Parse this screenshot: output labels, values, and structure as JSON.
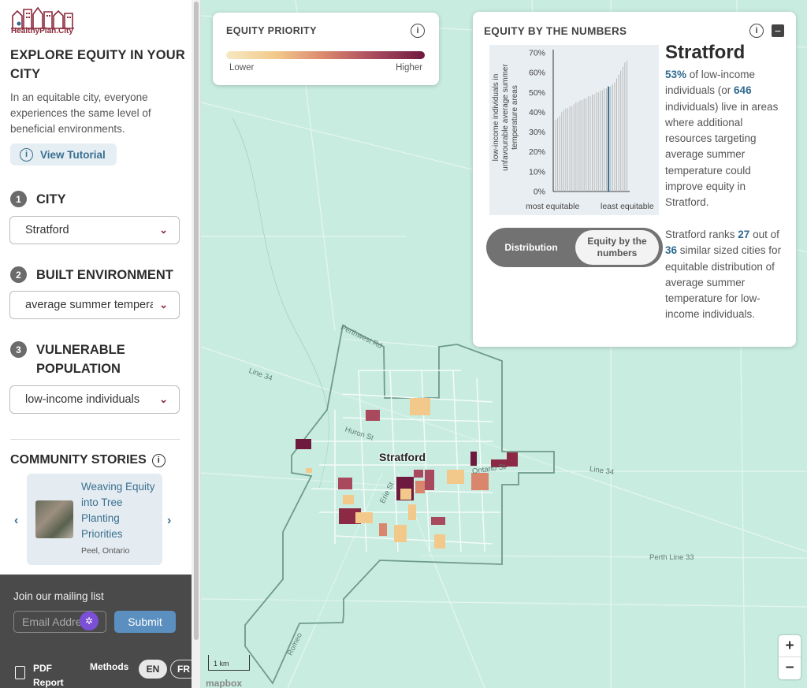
{
  "brand": {
    "logo_text": "HealthyPlan.City"
  },
  "sidebar": {
    "heading": "EXPLORE EQUITY IN YOUR CITY",
    "intro": "In an equitable city, everyone experiences the same level of beneficial environments.",
    "tutorial_label": "View Tutorial",
    "steps": [
      {
        "num": "1",
        "label": "CITY",
        "value": "Stratford"
      },
      {
        "num": "2",
        "label": "BUILT ENVIRONMENT",
        "value": "average summer temperature"
      },
      {
        "num": "3",
        "label": "VULNERABLE POPULATION",
        "value": "low-income individuals"
      }
    ],
    "stories_heading": "COMMUNITY STORIES",
    "story": {
      "title": "Weaving Equity into Tree Planting Priorities",
      "location": "Peel, Ontario"
    }
  },
  "footer": {
    "mailing_heading": "Join our mailing list",
    "email_placeholder": "Email Address",
    "badge": "✲",
    "submit_label": "Submit",
    "pdf_label": "PDF Report",
    "methods_label": "Methods",
    "lang_en": "EN",
    "lang_fr": "FR"
  },
  "map": {
    "city_label": "Stratford",
    "roads": [
      "Perth Line 33",
      "Line 34",
      "Line 34",
      "Huron St",
      "Ontario St",
      "Erie St",
      "Romeo",
      "Perthwest Rd"
    ],
    "scale_label": "1 km",
    "attribution": "mapbox",
    "zoom_in": "+",
    "zoom_out": "−",
    "accent": "#6e1a3f",
    "land_color": "#c9ece0"
  },
  "priority_panel": {
    "title": "EQUITY PRIORITY",
    "low": "Lower",
    "high": "Higher",
    "info": "i"
  },
  "numbers_panel": {
    "title": "EQUITY BY THE NUMBERS",
    "info": "i",
    "minimize": "−",
    "city": "Stratford",
    "pct": "53%",
    "desc_a": " of low-income individuals (or ",
    "count": "646",
    "desc_b": " individuals) live in areas where additional resources targeting average summer temperature could improve equity in Stratford.",
    "toggle_a": "Distribution",
    "toggle_b": "Equity by the numbers",
    "rank_a": "Stratford ranks ",
    "rank": "27",
    "rank_b": " out of ",
    "total": "36",
    "rank_c": " similar sized cities for equitable distribution of average summer temperature for low-income individuals."
  },
  "chart_data": {
    "type": "bar",
    "ylabel": "low-income individuals in unfavourable average summer temperature areas",
    "xlabel_left": "most equitable",
    "xlabel_right": "least equitable",
    "ylim": [
      0,
      70
    ],
    "yticks": [
      "70%",
      "60%",
      "50%",
      "40%",
      "30%",
      "20%",
      "10%",
      "0%"
    ],
    "highlight_index": 26,
    "highlight_color": "#2f6b90",
    "values": [
      36,
      37,
      38,
      40,
      41,
      42,
      42,
      43,
      43,
      44,
      45,
      45,
      46,
      46,
      47,
      47,
      48,
      48,
      49,
      49,
      50,
      50,
      51,
      51,
      52,
      52,
      53,
      53,
      54,
      55,
      57,
      59,
      61,
      63,
      65,
      66
    ]
  }
}
